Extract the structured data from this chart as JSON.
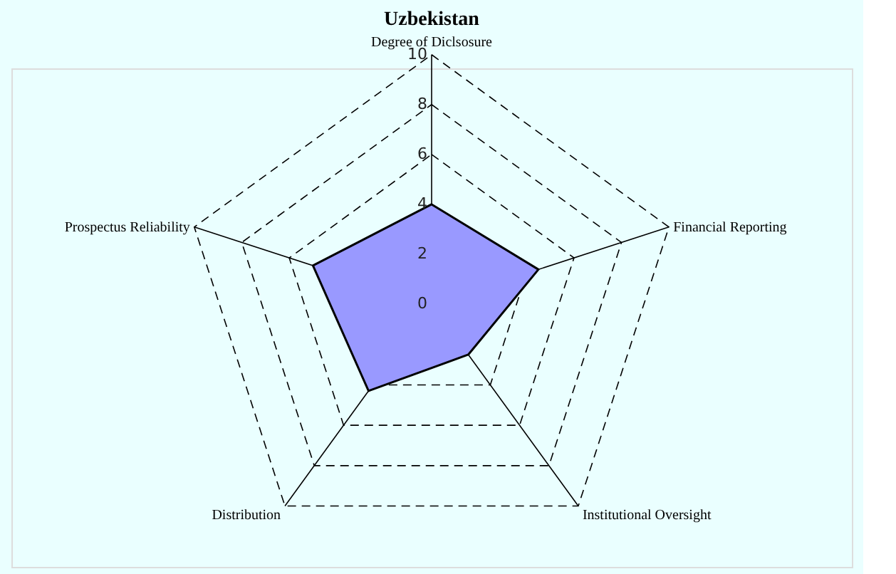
{
  "chart_data": {
    "type": "radar",
    "title": "Uzbekistan",
    "categories": [
      "Degree of Diclsosure",
      "Financial Reporting",
      "Institutional Oversight",
      "Distribution",
      "Prospectus Reliability"
    ],
    "series": [
      {
        "color": "#9999ff",
        "values": [
          4,
          4.5,
          2.5,
          4.3,
          5
        ]
      }
    ],
    "ylim": [
      0,
      10
    ],
    "yticks": [
      0,
      2,
      4,
      6,
      8,
      10
    ],
    "grid": true
  }
}
